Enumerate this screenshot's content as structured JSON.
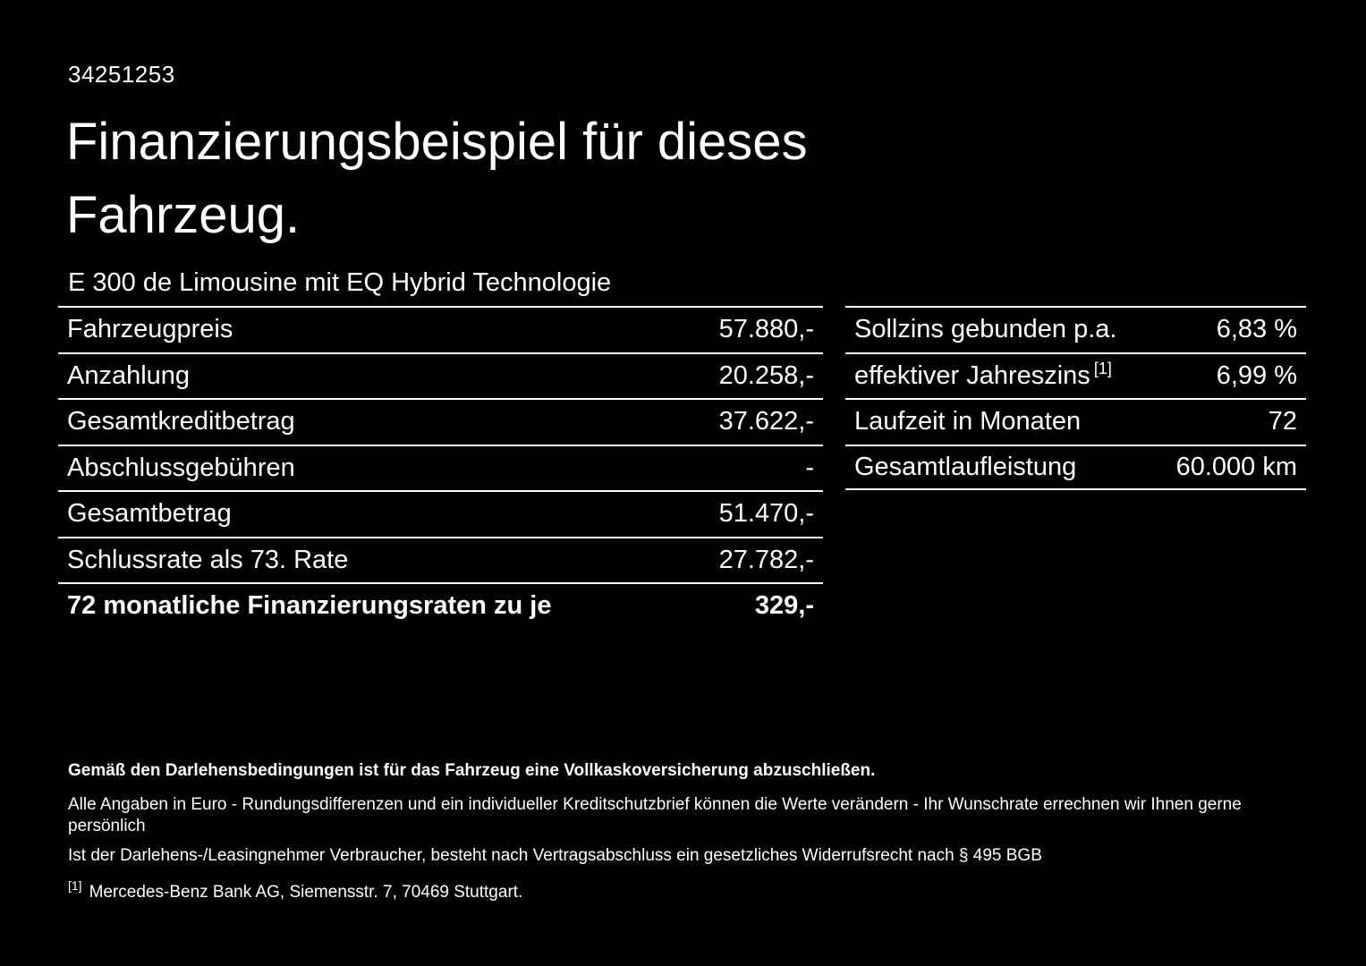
{
  "header": {
    "id_number": "34251253",
    "title": "Finanzierungsbeispiel für dieses Fahrzeug.",
    "subtitle": "E 300 de Limousine mit EQ Hybrid Technologie"
  },
  "tables": {
    "left": {
      "rows": [
        {
          "label": "Fahrzeugpreis",
          "value": "57.880,-"
        },
        {
          "label": "Anzahlung",
          "value": "20.258,-"
        },
        {
          "label": "Gesamtkreditbetrag",
          "value": "37.622,-"
        },
        {
          "label": "Abschlussgebühren",
          "value": "-"
        },
        {
          "label": "Gesamtbetrag",
          "value": "51.470,-"
        },
        {
          "label": "Schlussrate als 73. Rate",
          "value": "27.782,-"
        },
        {
          "label": "72 monatliche Finanzierungsraten zu je",
          "value": "329,-"
        }
      ]
    },
    "right": {
      "rows": [
        {
          "label": "Sollzins gebunden p.a.",
          "sup": "",
          "value": "6,83 %"
        },
        {
          "label": "effektiver Jahreszins",
          "sup": "[1]",
          "value": "6,99 %"
        },
        {
          "label": "Laufzeit in Monaten",
          "sup": "",
          "value": "72"
        },
        {
          "label": "Gesamtlaufleistung",
          "sup": "",
          "value": "60.000 km"
        }
      ]
    }
  },
  "footer": {
    "insurance_note": "Gemäß den Darlehensbedingungen ist für das Fahrzeug eine Vollkaskoversicherung abzuschließen.",
    "euro_note": "Alle Angaben in Euro - Rundungsdifferenzen und ein individueller Kreditschutzbrief können die Werte verändern - Ihr Wunschrate errechnen wir Ihnen gerne persönlich",
    "withdrawal_note": "Ist der Darlehens-/Leasingnehmer Verbraucher, besteht nach Vertragsabschluss ein gesetzliches Widerrufsrecht nach § 495 BGB",
    "footnote_marker": "[1]",
    "footnote_text": "Mercedes-Benz Bank AG, Siemensstr. 7, 70469 Stuttgart."
  },
  "colors": {
    "background": "#000000",
    "text": "#ffffff",
    "divider": "#ffffff"
  }
}
